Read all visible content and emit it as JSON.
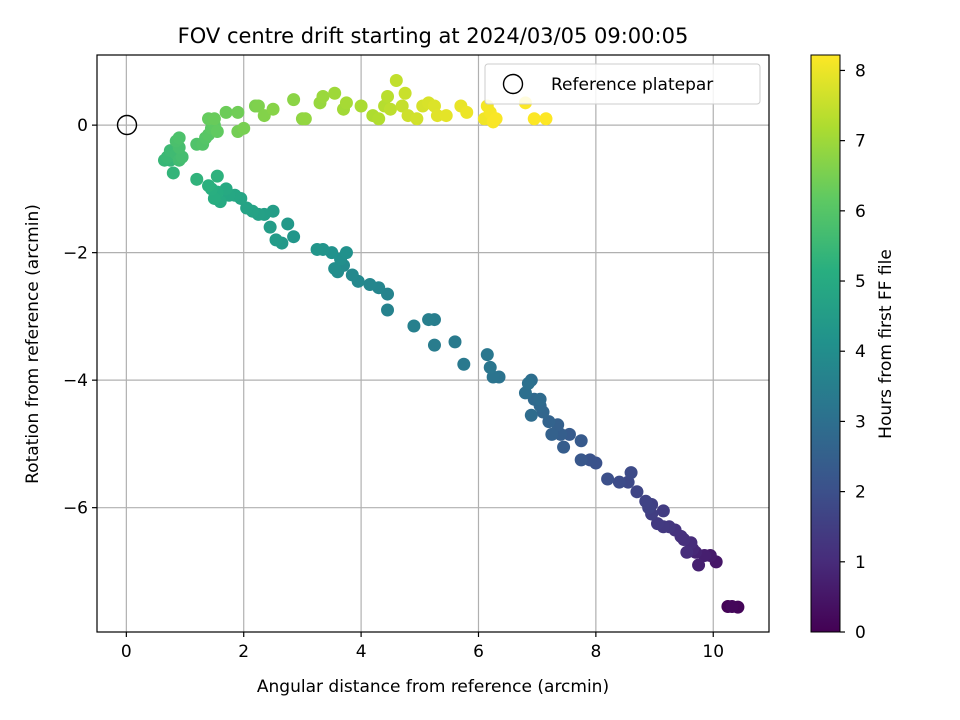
{
  "chart_data": {
    "type": "scatter",
    "title": "FOV centre drift starting at 2024/03/05 09:00:05",
    "xlabel": "Angular distance from reference (arcmin)",
    "ylabel": "Rotation from reference (arcmin)",
    "xlim": [
      -0.5,
      10.95
    ],
    "ylim": [
      -7.95,
      1.1
    ],
    "xticks": [
      0,
      2,
      4,
      6,
      8,
      10
    ],
    "yticks": [
      0,
      -2,
      -4,
      -6
    ],
    "grid": true,
    "legend": {
      "placement": "top-right",
      "entries": [
        "Reference platepar"
      ]
    },
    "reference_point": {
      "x": 0,
      "y": 0,
      "label": "Reference platepar"
    },
    "colorbar": {
      "label": "Hours from first FF file",
      "colormap": "viridis",
      "range": [
        0,
        8.22
      ],
      "ticks": [
        0,
        1,
        2,
        3,
        4,
        5,
        6,
        7,
        8
      ]
    },
    "series": [
      {
        "points": [
          [
            10.25,
            -7.55,
            0.05
          ],
          [
            10.42,
            -7.56,
            0.1
          ],
          [
            10.32,
            -7.55,
            0.15
          ],
          [
            10.05,
            -6.85,
            0.5
          ],
          [
            9.95,
            -6.75,
            0.6
          ],
          [
            9.85,
            -6.75,
            0.7
          ],
          [
            9.75,
            -6.9,
            0.75
          ],
          [
            9.7,
            -6.7,
            0.8
          ],
          [
            9.65,
            -6.65,
            0.9
          ],
          [
            9.62,
            -6.55,
            1.0
          ],
          [
            9.55,
            -6.7,
            1.05
          ],
          [
            9.5,
            -6.5,
            1.1
          ],
          [
            9.45,
            -6.45,
            1.15
          ],
          [
            9.35,
            -6.35,
            1.2
          ],
          [
            9.25,
            -6.3,
            1.3
          ],
          [
            9.15,
            -6.3,
            1.35
          ],
          [
            9.05,
            -6.25,
            1.4
          ],
          [
            9.15,
            -6.05,
            1.45
          ],
          [
            8.95,
            -6.1,
            1.5
          ],
          [
            8.95,
            -5.95,
            1.55
          ],
          [
            8.9,
            -6.0,
            1.6
          ],
          [
            8.85,
            -5.9,
            1.65
          ],
          [
            8.7,
            -5.75,
            1.7
          ],
          [
            8.55,
            -5.6,
            1.8
          ],
          [
            8.6,
            -5.45,
            1.85
          ],
          [
            8.4,
            -5.6,
            1.9
          ],
          [
            8.2,
            -5.55,
            2.0
          ],
          [
            8.0,
            -5.3,
            2.05
          ],
          [
            7.9,
            -5.25,
            2.1
          ],
          [
            7.75,
            -5.25,
            2.2
          ],
          [
            7.75,
            -4.95,
            2.3
          ],
          [
            7.55,
            -4.85,
            2.35
          ],
          [
            7.45,
            -5.05,
            2.4
          ],
          [
            7.4,
            -4.85,
            2.45
          ],
          [
            7.35,
            -4.7,
            2.5
          ],
          [
            7.25,
            -4.85,
            2.55
          ],
          [
            7.2,
            -4.65,
            2.6
          ],
          [
            7.1,
            -4.5,
            2.7
          ],
          [
            7.05,
            -4.4,
            2.75
          ],
          [
            6.95,
            -4.3,
            2.8
          ],
          [
            7.05,
            -4.3,
            2.85
          ],
          [
            6.9,
            -4.55,
            2.9
          ],
          [
            6.9,
            -4.0,
            2.95
          ],
          [
            6.8,
            -4.2,
            3.0
          ],
          [
            6.85,
            -4.05,
            3.05
          ],
          [
            6.35,
            -3.95,
            3.1
          ],
          [
            6.25,
            -3.95,
            3.15
          ],
          [
            6.2,
            -3.8,
            3.2
          ],
          [
            6.15,
            -3.6,
            3.25
          ],
          [
            5.75,
            -3.75,
            3.3
          ],
          [
            5.6,
            -3.4,
            3.35
          ],
          [
            5.25,
            -3.45,
            3.4
          ],
          [
            5.25,
            -3.05,
            3.45
          ],
          [
            5.15,
            -3.05,
            3.5
          ],
          [
            4.9,
            -3.15,
            3.55
          ],
          [
            4.45,
            -2.9,
            3.6
          ],
          [
            4.45,
            -2.65,
            3.65
          ],
          [
            4.3,
            -2.55,
            3.7
          ],
          [
            4.15,
            -2.5,
            3.75
          ],
          [
            3.95,
            -2.45,
            3.8
          ],
          [
            3.85,
            -2.35,
            3.85
          ],
          [
            3.7,
            -2.2,
            3.9
          ],
          [
            3.6,
            -2.3,
            3.95
          ],
          [
            3.55,
            -2.25,
            4.0
          ],
          [
            3.65,
            -2.1,
            4.05
          ],
          [
            3.75,
            -2.0,
            4.1
          ],
          [
            3.5,
            -2.0,
            4.15
          ],
          [
            3.35,
            -1.95,
            4.2
          ],
          [
            3.25,
            -1.95,
            4.25
          ],
          [
            2.85,
            -1.75,
            4.3
          ],
          [
            2.75,
            -1.55,
            4.35
          ],
          [
            2.65,
            -1.85,
            4.4
          ],
          [
            2.55,
            -1.8,
            4.45
          ],
          [
            2.45,
            -1.6,
            4.5
          ],
          [
            2.5,
            -1.35,
            4.55
          ],
          [
            2.35,
            -1.4,
            4.6
          ],
          [
            2.25,
            -1.4,
            4.65
          ],
          [
            2.15,
            -1.35,
            4.7
          ],
          [
            2.05,
            -1.3,
            4.75
          ],
          [
            1.95,
            -1.15,
            4.8
          ],
          [
            1.85,
            -1.1,
            4.85
          ],
          [
            1.75,
            -1.1,
            4.9
          ],
          [
            1.7,
            -1.0,
            4.95
          ],
          [
            1.6,
            -1.2,
            5.0
          ],
          [
            1.55,
            -1.05,
            5.05
          ],
          [
            1.5,
            -1.15,
            5.1
          ],
          [
            1.45,
            -1.0,
            5.15
          ],
          [
            1.4,
            -0.95,
            5.2
          ],
          [
            1.55,
            -0.8,
            5.25
          ],
          [
            1.2,
            -0.85,
            5.3
          ],
          [
            0.8,
            -0.75,
            5.35
          ],
          [
            0.75,
            -0.55,
            5.4
          ],
          [
            0.65,
            -0.55,
            5.45
          ],
          [
            0.7,
            -0.5,
            5.5
          ],
          [
            0.75,
            -0.4,
            5.55
          ],
          [
            0.85,
            -0.45,
            5.6
          ],
          [
            0.9,
            -0.55,
            5.65
          ],
          [
            0.95,
            -0.5,
            5.7
          ],
          [
            0.9,
            -0.35,
            5.75
          ],
          [
            0.85,
            -0.25,
            5.8
          ],
          [
            0.9,
            -0.2,
            5.85
          ],
          [
            1.2,
            -0.3,
            5.9
          ],
          [
            1.3,
            -0.3,
            5.95
          ],
          [
            1.35,
            -0.2,
            6.0
          ],
          [
            1.4,
            -0.15,
            6.05
          ],
          [
            1.45,
            -0.05,
            6.1
          ],
          [
            1.5,
            0.0,
            6.15
          ],
          [
            1.55,
            -0.1,
            6.2
          ],
          [
            1.4,
            0.1,
            6.25
          ],
          [
            1.5,
            0.1,
            6.3
          ],
          [
            1.7,
            0.2,
            6.35
          ],
          [
            1.9,
            0.2,
            6.4
          ],
          [
            1.9,
            -0.1,
            6.45
          ],
          [
            2.0,
            -0.05,
            6.5
          ],
          [
            2.2,
            0.3,
            6.55
          ],
          [
            2.25,
            0.3,
            6.6
          ],
          [
            2.35,
            0.15,
            6.65
          ],
          [
            2.5,
            0.25,
            6.7
          ],
          [
            2.85,
            0.4,
            6.75
          ],
          [
            3.0,
            0.1,
            6.8
          ],
          [
            3.05,
            0.1,
            6.85
          ],
          [
            3.3,
            0.35,
            6.9
          ],
          [
            3.35,
            0.45,
            6.95
          ],
          [
            3.55,
            0.5,
            7.0
          ],
          [
            3.7,
            0.25,
            7.05
          ],
          [
            3.75,
            0.35,
            7.1
          ],
          [
            4.0,
            0.3,
            7.15
          ],
          [
            4.2,
            0.15,
            7.2
          ],
          [
            4.3,
            0.1,
            7.25
          ],
          [
            4.4,
            0.3,
            7.3
          ],
          [
            4.45,
            0.45,
            7.35
          ],
          [
            4.5,
            0.25,
            7.4
          ],
          [
            4.6,
            0.7,
            7.45
          ],
          [
            4.7,
            0.3,
            7.5
          ],
          [
            4.75,
            0.5,
            7.55
          ],
          [
            4.8,
            0.15,
            7.6
          ],
          [
            4.95,
            0.1,
            7.65
          ],
          [
            5.05,
            0.3,
            7.7
          ],
          [
            5.15,
            0.35,
            7.75
          ],
          [
            5.25,
            0.3,
            7.8
          ],
          [
            5.3,
            0.15,
            7.85
          ],
          [
            5.45,
            0.15,
            7.9
          ],
          [
            5.7,
            0.3,
            7.95
          ],
          [
            5.8,
            0.2,
            8.0
          ],
          [
            6.1,
            0.1,
            8.05
          ],
          [
            6.15,
            0.3,
            8.1
          ],
          [
            6.2,
            0.2,
            8.12
          ],
          [
            6.25,
            0.05,
            8.15
          ],
          [
            6.3,
            0.1,
            8.17
          ],
          [
            6.8,
            0.35,
            8.19
          ],
          [
            6.95,
            0.1,
            8.21
          ],
          [
            7.15,
            0.1,
            8.22
          ]
        ]
      }
    ]
  }
}
